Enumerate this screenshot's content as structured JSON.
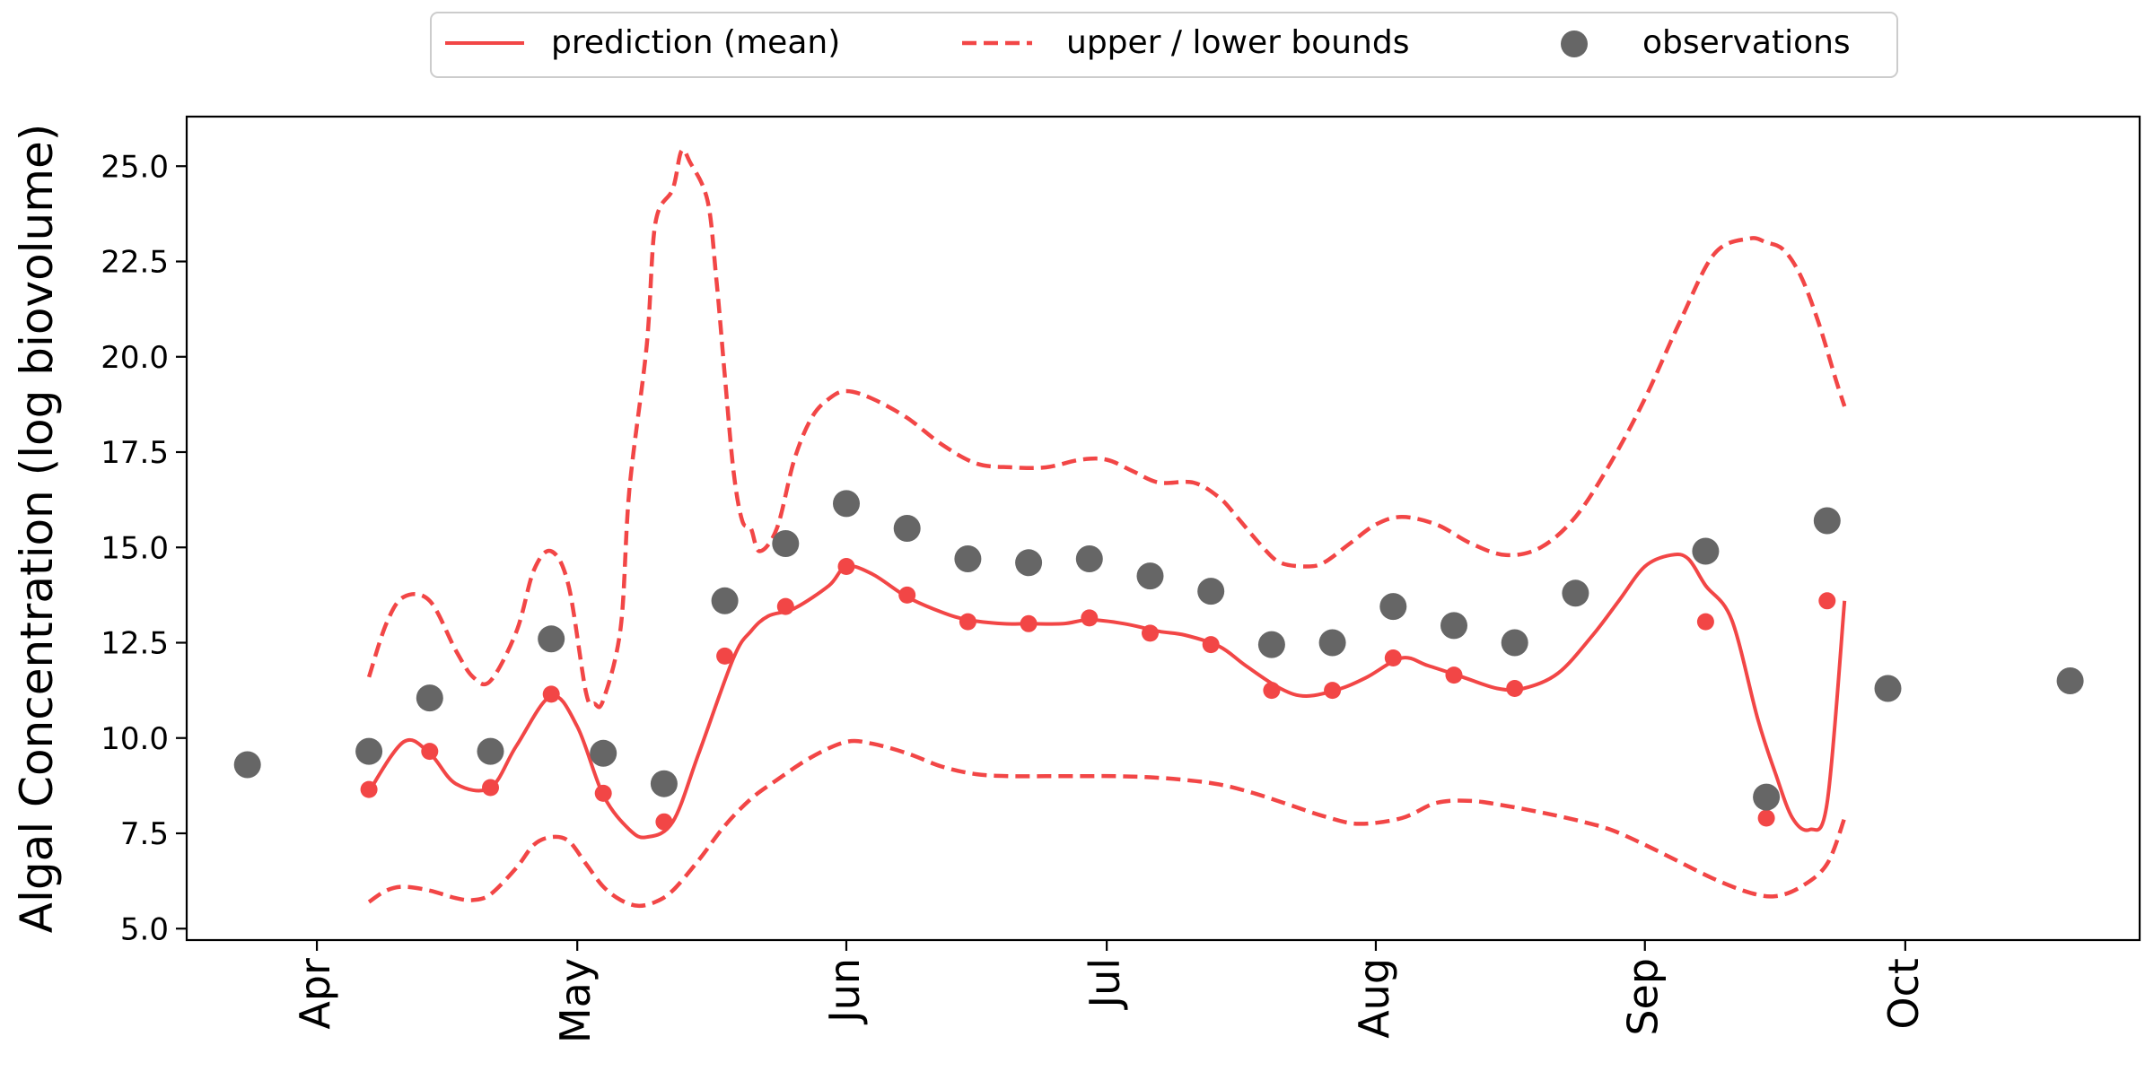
{
  "chart_data": {
    "type": "line",
    "title": "",
    "xlabel": "",
    "ylabel": "Algal Concentration (log biovolume)",
    "x_type": "date",
    "xlim": [
      "2023-03-17",
      "2023-10-28"
    ],
    "ylim": [
      4.7,
      26.3
    ],
    "x_ticks": [
      {
        "date": "2023-04-01",
        "label": "Apr"
      },
      {
        "date": "2023-05-01",
        "label": "May"
      },
      {
        "date": "2023-06-01",
        "label": "Jun"
      },
      {
        "date": "2023-07-01",
        "label": "Jul"
      },
      {
        "date": "2023-08-01",
        "label": "Aug"
      },
      {
        "date": "2023-09-01",
        "label": "Sep"
      },
      {
        "date": "2023-10-01",
        "label": "Oct"
      }
    ],
    "y_ticks": [
      5.0,
      7.5,
      10.0,
      12.5,
      15.0,
      17.5,
      20.0,
      22.5,
      25.0
    ],
    "y_tick_labels": [
      "5.0",
      "7.5",
      "10.0",
      "12.5",
      "15.0",
      "17.5",
      "20.0",
      "22.5",
      "25.0"
    ],
    "grid": false,
    "legend": {
      "placement": "top-center",
      "entries": [
        {
          "label": "prediction (mean)",
          "style": "solid-line"
        },
        {
          "label": "upper / lower bounds",
          "style": "dashed-line"
        },
        {
          "label": "observations",
          "style": "marker"
        }
      ]
    },
    "colors": {
      "prediction": "#f24646",
      "bounds": "#f24646",
      "observations": "#666666"
    },
    "series": [
      {
        "name": "prediction (mean)",
        "style": "solid",
        "dates": [
          "2023-04-07",
          "2023-04-11",
          "2023-04-14",
          "2023-04-17",
          "2023-04-21",
          "2023-04-24",
          "2023-04-28",
          "2023-05-01",
          "2023-05-04",
          "2023-05-07",
          "2023-05-09",
          "2023-05-12",
          "2023-05-15",
          "2023-05-19",
          "2023-05-21",
          "2023-05-23",
          "2023-05-26",
          "2023-05-30",
          "2023-06-01",
          "2023-06-04",
          "2023-06-08",
          "2023-06-12",
          "2023-06-15",
          "2023-06-19",
          "2023-06-22",
          "2023-06-26",
          "2023-06-29",
          "2023-07-03",
          "2023-07-07",
          "2023-07-10",
          "2023-07-14",
          "2023-07-17",
          "2023-07-21",
          "2023-07-24",
          "2023-07-28",
          "2023-07-31",
          "2023-08-04",
          "2023-08-07",
          "2023-08-11",
          "2023-08-15",
          "2023-08-18",
          "2023-08-22",
          "2023-08-26",
          "2023-08-29",
          "2023-09-01",
          "2023-09-04",
          "2023-09-06",
          "2023-09-08",
          "2023-09-11",
          "2023-09-14",
          "2023-09-16",
          "2023-09-18",
          "2023-09-20",
          "2023-09-22",
          "2023-09-24"
        ],
        "values": [
          8.6,
          9.9,
          9.6,
          8.8,
          8.7,
          9.8,
          11.1,
          10.3,
          8.5,
          7.6,
          7.4,
          7.8,
          9.6,
          12.1,
          12.8,
          13.2,
          13.4,
          14.0,
          14.5,
          14.3,
          13.7,
          13.3,
          13.1,
          13.0,
          13.0,
          13.0,
          13.1,
          13.0,
          12.8,
          12.7,
          12.4,
          11.9,
          11.3,
          11.1,
          11.3,
          11.6,
          12.1,
          11.9,
          11.6,
          11.3,
          11.3,
          11.7,
          12.7,
          13.6,
          14.5,
          14.8,
          14.7,
          14.0,
          13.1,
          10.5,
          9.1,
          7.9,
          7.6,
          8.3,
          13.6
        ]
      },
      {
        "name": "upper bound",
        "style": "dashed",
        "dates": [
          "2023-04-07",
          "2023-04-09",
          "2023-04-11",
          "2023-04-14",
          "2023-04-17",
          "2023-04-19",
          "2023-04-21",
          "2023-04-24",
          "2023-04-26",
          "2023-04-28",
          "2023-04-30",
          "2023-05-02",
          "2023-05-03",
          "2023-05-04",
          "2023-05-06",
          "2023-05-07",
          "2023-05-09",
          "2023-05-10",
          "2023-05-12",
          "2023-05-13",
          "2023-05-14",
          "2023-05-16",
          "2023-05-17",
          "2023-05-18",
          "2023-05-19",
          "2023-05-20",
          "2023-05-21",
          "2023-05-22",
          "2023-05-24",
          "2023-05-26",
          "2023-05-28",
          "2023-05-30",
          "2023-06-01",
          "2023-06-04",
          "2023-06-08",
          "2023-06-12",
          "2023-06-16",
          "2023-06-20",
          "2023-06-24",
          "2023-06-28",
          "2023-07-01",
          "2023-07-04",
          "2023-07-07",
          "2023-07-11",
          "2023-07-14",
          "2023-07-16",
          "2023-07-19",
          "2023-07-21",
          "2023-07-24",
          "2023-07-26",
          "2023-07-29",
          "2023-08-01",
          "2023-08-04",
          "2023-08-08",
          "2023-08-12",
          "2023-08-16",
          "2023-08-20",
          "2023-08-24",
          "2023-08-28",
          "2023-09-01",
          "2023-09-05",
          "2023-09-09",
          "2023-09-13",
          "2023-09-15",
          "2023-09-17",
          "2023-09-19",
          "2023-09-21",
          "2023-09-23",
          "2023-09-24"
        ],
        "values": [
          11.6,
          13.0,
          13.7,
          13.6,
          12.3,
          11.6,
          11.5,
          12.8,
          14.4,
          14.9,
          14.0,
          11.2,
          10.9,
          11.0,
          12.9,
          16.5,
          20.3,
          23.5,
          24.4,
          25.4,
          25.1,
          24.1,
          22.1,
          19.5,
          17.0,
          15.7,
          15.5,
          14.9,
          15.5,
          17.3,
          18.4,
          18.9,
          19.1,
          18.9,
          18.4,
          17.7,
          17.2,
          17.1,
          17.1,
          17.3,
          17.3,
          17.0,
          16.7,
          16.7,
          16.3,
          15.8,
          15.0,
          14.6,
          14.5,
          14.6,
          15.1,
          15.6,
          15.8,
          15.6,
          15.1,
          14.8,
          15.0,
          15.8,
          17.2,
          18.9,
          20.9,
          22.7,
          23.1,
          23.0,
          22.8,
          22.1,
          20.9,
          19.4,
          18.7
        ]
      },
      {
        "name": "lower bound",
        "style": "dashed",
        "dates": [
          "2023-04-07",
          "2023-04-09",
          "2023-04-11",
          "2023-04-14",
          "2023-04-17",
          "2023-04-19",
          "2023-04-21",
          "2023-04-24",
          "2023-04-26",
          "2023-04-28",
          "2023-04-30",
          "2023-05-02",
          "2023-05-04",
          "2023-05-06",
          "2023-05-08",
          "2023-05-10",
          "2023-05-12",
          "2023-05-15",
          "2023-05-18",
          "2023-05-21",
          "2023-05-24",
          "2023-05-28",
          "2023-06-01",
          "2023-06-04",
          "2023-06-08",
          "2023-06-12",
          "2023-06-16",
          "2023-06-20",
          "2023-06-24",
          "2023-06-28",
          "2023-07-02",
          "2023-07-06",
          "2023-07-10",
          "2023-07-14",
          "2023-07-18",
          "2023-07-22",
          "2023-07-26",
          "2023-07-30",
          "2023-08-04",
          "2023-08-08",
          "2023-08-12",
          "2023-08-16",
          "2023-08-20",
          "2023-08-24",
          "2023-08-28",
          "2023-09-01",
          "2023-09-05",
          "2023-09-09",
          "2023-09-13",
          "2023-09-16",
          "2023-09-19",
          "2023-09-22",
          "2023-09-24"
        ],
        "values": [
          5.7,
          6.0,
          6.1,
          6.0,
          5.8,
          5.75,
          5.9,
          6.6,
          7.2,
          7.4,
          7.3,
          6.7,
          6.1,
          5.75,
          5.6,
          5.7,
          6.0,
          6.8,
          7.7,
          8.4,
          8.9,
          9.5,
          9.9,
          9.85,
          9.6,
          9.25,
          9.05,
          9.0,
          9.0,
          9.0,
          9.0,
          8.97,
          8.9,
          8.78,
          8.55,
          8.25,
          7.95,
          7.75,
          7.9,
          8.3,
          8.35,
          8.22,
          8.05,
          7.85,
          7.6,
          7.2,
          6.75,
          6.3,
          5.95,
          5.85,
          6.1,
          6.7,
          7.9
        ]
      },
      {
        "name": "prediction points",
        "style": "markers",
        "dates": [
          "2023-04-07",
          "2023-04-14",
          "2023-04-21",
          "2023-04-28",
          "2023-05-04",
          "2023-05-11",
          "2023-05-18",
          "2023-05-25",
          "2023-06-01",
          "2023-06-08",
          "2023-06-15",
          "2023-06-22",
          "2023-06-29",
          "2023-07-06",
          "2023-07-13",
          "2023-07-20",
          "2023-07-27",
          "2023-08-03",
          "2023-08-10",
          "2023-08-17",
          "2023-09-08",
          "2023-09-15",
          "2023-09-22"
        ],
        "values": [
          8.65,
          9.65,
          8.7,
          11.15,
          8.55,
          7.8,
          12.15,
          13.45,
          14.5,
          13.75,
          13.05,
          13.0,
          13.15,
          12.75,
          12.45,
          11.25,
          11.25,
          12.1,
          11.65,
          11.3,
          13.05,
          7.9,
          13.6
        ]
      },
      {
        "name": "observations",
        "style": "markers",
        "dates": [
          "2023-03-24",
          "2023-04-07",
          "2023-04-14",
          "2023-04-21",
          "2023-04-28",
          "2023-05-04",
          "2023-05-11",
          "2023-05-18",
          "2023-05-25",
          "2023-06-01",
          "2023-06-08",
          "2023-06-15",
          "2023-06-22",
          "2023-06-29",
          "2023-07-06",
          "2023-07-13",
          "2023-07-20",
          "2023-07-27",
          "2023-08-03",
          "2023-08-10",
          "2023-08-17",
          "2023-08-24",
          "2023-09-08",
          "2023-09-15",
          "2023-09-22",
          "2023-09-29",
          "2023-10-20"
        ],
        "values": [
          9.3,
          9.65,
          11.05,
          9.65,
          12.6,
          9.6,
          8.8,
          13.6,
          15.1,
          16.15,
          15.5,
          14.7,
          14.6,
          14.7,
          14.25,
          13.85,
          12.45,
          12.5,
          13.45,
          12.95,
          12.5,
          13.8,
          14.9,
          8.45,
          15.7,
          11.3,
          11.5
        ]
      }
    ]
  }
}
